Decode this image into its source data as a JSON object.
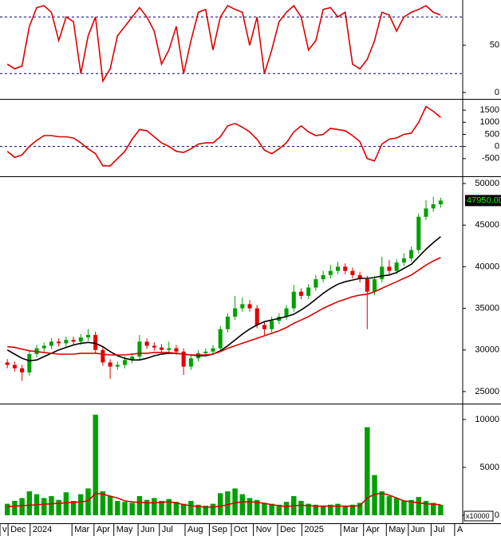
{
  "chart_data": [
    {
      "type": "line",
      "ylim": [
        -6,
        98
      ],
      "yticks": [
        0,
        50
      ],
      "hlines": [
        20,
        80
      ],
      "series": [
        {
          "color": "#dd0000",
          "values": [
            30,
            25,
            28,
            70,
            90,
            92,
            85,
            55,
            80,
            75,
            20,
            60,
            80,
            12,
            25,
            60,
            70,
            80,
            90,
            80,
            65,
            30,
            45,
            70,
            20,
            55,
            85,
            88,
            45,
            80,
            92,
            88,
            85,
            50,
            80,
            20,
            45,
            75,
            85,
            92,
            80,
            45,
            55,
            88,
            90,
            80,
            85,
            30,
            25,
            35,
            55,
            85,
            82,
            65,
            80,
            85,
            88,
            92,
            85,
            82
          ]
        }
      ]
    },
    {
      "type": "line",
      "ylim": [
        -1200,
        1900
      ],
      "yticks": [
        -500,
        0,
        500,
        1000,
        1500
      ],
      "hlines": [
        0
      ],
      "series": [
        {
          "color": "#dd0000",
          "values": [
            -200,
            -450,
            -350,
            0,
            250,
            450,
            450,
            400,
            400,
            350,
            150,
            -100,
            -300,
            -800,
            -800,
            -500,
            -200,
            300,
            700,
            650,
            400,
            150,
            0,
            -200,
            -250,
            -100,
            100,
            150,
            150,
            400,
            850,
            950,
            800,
            600,
            300,
            -150,
            -300,
            -100,
            150,
            600,
            850,
            600,
            450,
            500,
            750,
            700,
            650,
            450,
            200,
            -500,
            -600,
            100,
            300,
            350,
            500,
            550,
            1000,
            1650,
            1450,
            1200
          ]
        }
      ]
    },
    {
      "type": "candlestick",
      "ylim": [
        23650,
        50770
      ],
      "yticks": [
        25000,
        30000,
        35000,
        40000,
        45000,
        50000
      ],
      "up_color": "#00a000",
      "down_color": "#e00000",
      "open": [
        28500,
        28200,
        27800,
        27300,
        29500,
        30200,
        30500,
        31000,
        30800,
        31200,
        31000,
        31500,
        31800,
        30000,
        28500,
        28000,
        28200,
        28800,
        29200,
        31000,
        30500,
        30300,
        30000,
        30200,
        29800,
        28000,
        29000,
        29600,
        29800,
        30200,
        32500,
        34000,
        35000,
        35500,
        35000,
        33000,
        32500,
        33500,
        34000,
        35000,
        37000,
        36500,
        37500,
        38500,
        39000,
        39500,
        40000,
        39500,
        39000,
        38500,
        37000,
        38500,
        40000,
        39500,
        40500,
        41000,
        42000,
        46000,
        47000,
        47500
      ],
      "high": [
        28900,
        28600,
        28200,
        29900,
        30600,
        30900,
        31400,
        31400,
        31600,
        31600,
        31900,
        32500,
        32200,
        30400,
        28900,
        28600,
        29200,
        29600,
        31800,
        31400,
        30900,
        30700,
        31000,
        30600,
        30200,
        29400,
        30000,
        30200,
        30600,
        32900,
        34400,
        36500,
        36300,
        36000,
        35400,
        33400,
        34000,
        34400,
        35400,
        37800,
        37400,
        37900,
        39000,
        39500,
        40200,
        40600,
        40400,
        39900,
        39400,
        38900,
        38900,
        41200,
        40800,
        40900,
        41600,
        42400,
        46400,
        48000,
        48400,
        48300
      ],
      "low": [
        27800,
        27400,
        26300,
        26900,
        29100,
        29800,
        30100,
        30400,
        30400,
        30600,
        30600,
        31100,
        29600,
        28100,
        26500,
        27600,
        27800,
        28400,
        28800,
        30100,
        29900,
        29600,
        29600,
        29400,
        27000,
        27600,
        28600,
        29200,
        29400,
        29800,
        32100,
        33600,
        34600,
        34600,
        32600,
        31800,
        32100,
        33100,
        33600,
        34600,
        36100,
        36100,
        37100,
        38100,
        38600,
        39100,
        39100,
        38600,
        38100,
        32500,
        36600,
        38100,
        39100,
        39100,
        40100,
        40600,
        41600,
        45600,
        46600,
        47100
      ],
      "close": [
        28200,
        27800,
        27300,
        29500,
        30200,
        30500,
        31000,
        30800,
        31200,
        31000,
        31500,
        31800,
        30000,
        28500,
        28000,
        28200,
        28800,
        29200,
        31000,
        30500,
        30300,
        30000,
        30200,
        29800,
        28000,
        29000,
        29600,
        29800,
        30200,
        32500,
        34000,
        35000,
        35500,
        35000,
        33000,
        32500,
        33500,
        34000,
        35000,
        37000,
        36500,
        37500,
        38500,
        39000,
        39500,
        40000,
        39500,
        39000,
        38500,
        37000,
        38500,
        40000,
        39500,
        40500,
        41000,
        42000,
        46000,
        47000,
        47500,
        47950
      ],
      "last_value": {
        "value": 47950,
        "label": "47950.00"
      },
      "series": [
        {
          "color": "#000000",
          "values": [
            30000,
            29500,
            29000,
            28700,
            28800,
            29200,
            29600,
            30000,
            30300,
            30600,
            30800,
            30900,
            30800,
            30400,
            29800,
            29300,
            29000,
            28800,
            28800,
            29000,
            29300,
            29500,
            29600,
            29600,
            29500,
            29400,
            29300,
            29300,
            29500,
            29900,
            30500,
            31200,
            31900,
            32500,
            33000,
            33400,
            33600,
            33800,
            34000,
            34300,
            34800,
            35400,
            36100,
            36800,
            37400,
            37900,
            38200,
            38400,
            38600,
            38600,
            38700,
            38900,
            39000,
            39300,
            39800,
            40300,
            41200,
            42100,
            42900,
            43600
          ]
        },
        {
          "color": "#dd0000",
          "values": [
            30400,
            30300,
            30100,
            29900,
            29800,
            29700,
            29600,
            29500,
            29500,
            29500,
            29600,
            29600,
            29600,
            29500,
            29400,
            29400,
            29400,
            29500,
            29600,
            29600,
            29700,
            29700,
            29700,
            29600,
            29500,
            29400,
            29400,
            29400,
            29500,
            29800,
            30200,
            30500,
            30800,
            31100,
            31400,
            31700,
            32000,
            32300,
            32700,
            33200,
            33600,
            34000,
            34500,
            35000,
            35400,
            35800,
            36100,
            36400,
            36600,
            36700,
            37000,
            37400,
            37800,
            38200,
            38600,
            39000,
            39600,
            40200,
            40700,
            41100
          ]
        }
      ]
    },
    {
      "type": "bar",
      "ylim": [
        -750,
        11580
      ],
      "yticks": [
        0,
        5000,
        10000
      ],
      "color": "#00a000",
      "unit_label": "x10000",
      "values": [
        1200,
        1500,
        1800,
        2500,
        2200,
        1800,
        2000,
        1600,
        2400,
        1500,
        2200,
        2800,
        10500,
        2500,
        2000,
        1500,
        1400,
        1300,
        2000,
        1600,
        1800,
        1500,
        1700,
        1400,
        1200,
        1500,
        1100,
        1000,
        1200,
        2300,
        2500,
        2800,
        2200,
        1800,
        1600,
        1300,
        1200,
        1100,
        1400,
        2000,
        1500,
        1200,
        1100,
        1000,
        1100,
        1200,
        1000,
        1100,
        1300,
        9200,
        4200,
        2500,
        2000,
        1800,
        1500,
        1600,
        1900,
        1500,
        1300,
        1100
      ],
      "series": [
        {
          "color": "#dd0000",
          "values": [
            900,
            950,
            1000,
            1050,
            1100,
            1150,
            1200,
            1250,
            1300,
            1350,
            1400,
            1500,
            2300,
            2200,
            2000,
            1800,
            1500,
            1400,
            1350,
            1300,
            1300,
            1350,
            1400,
            1300,
            1100,
            1000,
            900,
            850,
            850,
            950,
            1100,
            1300,
            1400,
            1400,
            1350,
            1250,
            1100,
            1000,
            900,
            1000,
            1050,
            1000,
            950,
            950,
            950,
            950,
            950,
            950,
            1000,
            1800,
            2200,
            2300,
            2100,
            1800,
            1500,
            1400,
            1300,
            1200,
            1150,
            1100
          ]
        }
      ],
      "xlim": [
        -1,
        62
      ],
      "xticks": [
        {
          "value": -1,
          "label": "v"
        },
        {
          "value": 0.1,
          "label": "Dec"
        },
        {
          "value": 3.1,
          "label": "2024"
        },
        {
          "value": 8.8,
          "label": "Mar"
        },
        {
          "value": 11.8,
          "label": "Apr"
        },
        {
          "value": 14.5,
          "label": "May"
        },
        {
          "value": 17.8,
          "label": "Jun"
        },
        {
          "value": 20.7,
          "label": "Jul"
        },
        {
          "value": 24.2,
          "label": "Aug"
        },
        {
          "value": 27.5,
          "label": "Sep"
        },
        {
          "value": 30.5,
          "label": "Oct"
        },
        {
          "value": 33.5,
          "label": "Nov"
        },
        {
          "value": 36.8,
          "label": "Dec"
        },
        {
          "value": 40.1,
          "label": "2025"
        },
        {
          "value": 45.4,
          "label": "Mar"
        },
        {
          "value": 48.5,
          "label": "Apr"
        },
        {
          "value": 51.6,
          "label": "May"
        },
        {
          "value": 54.6,
          "label": "Jun"
        },
        {
          "value": 57.7,
          "label": "Jul"
        },
        {
          "value": 60.9,
          "label": "A"
        }
      ]
    }
  ]
}
